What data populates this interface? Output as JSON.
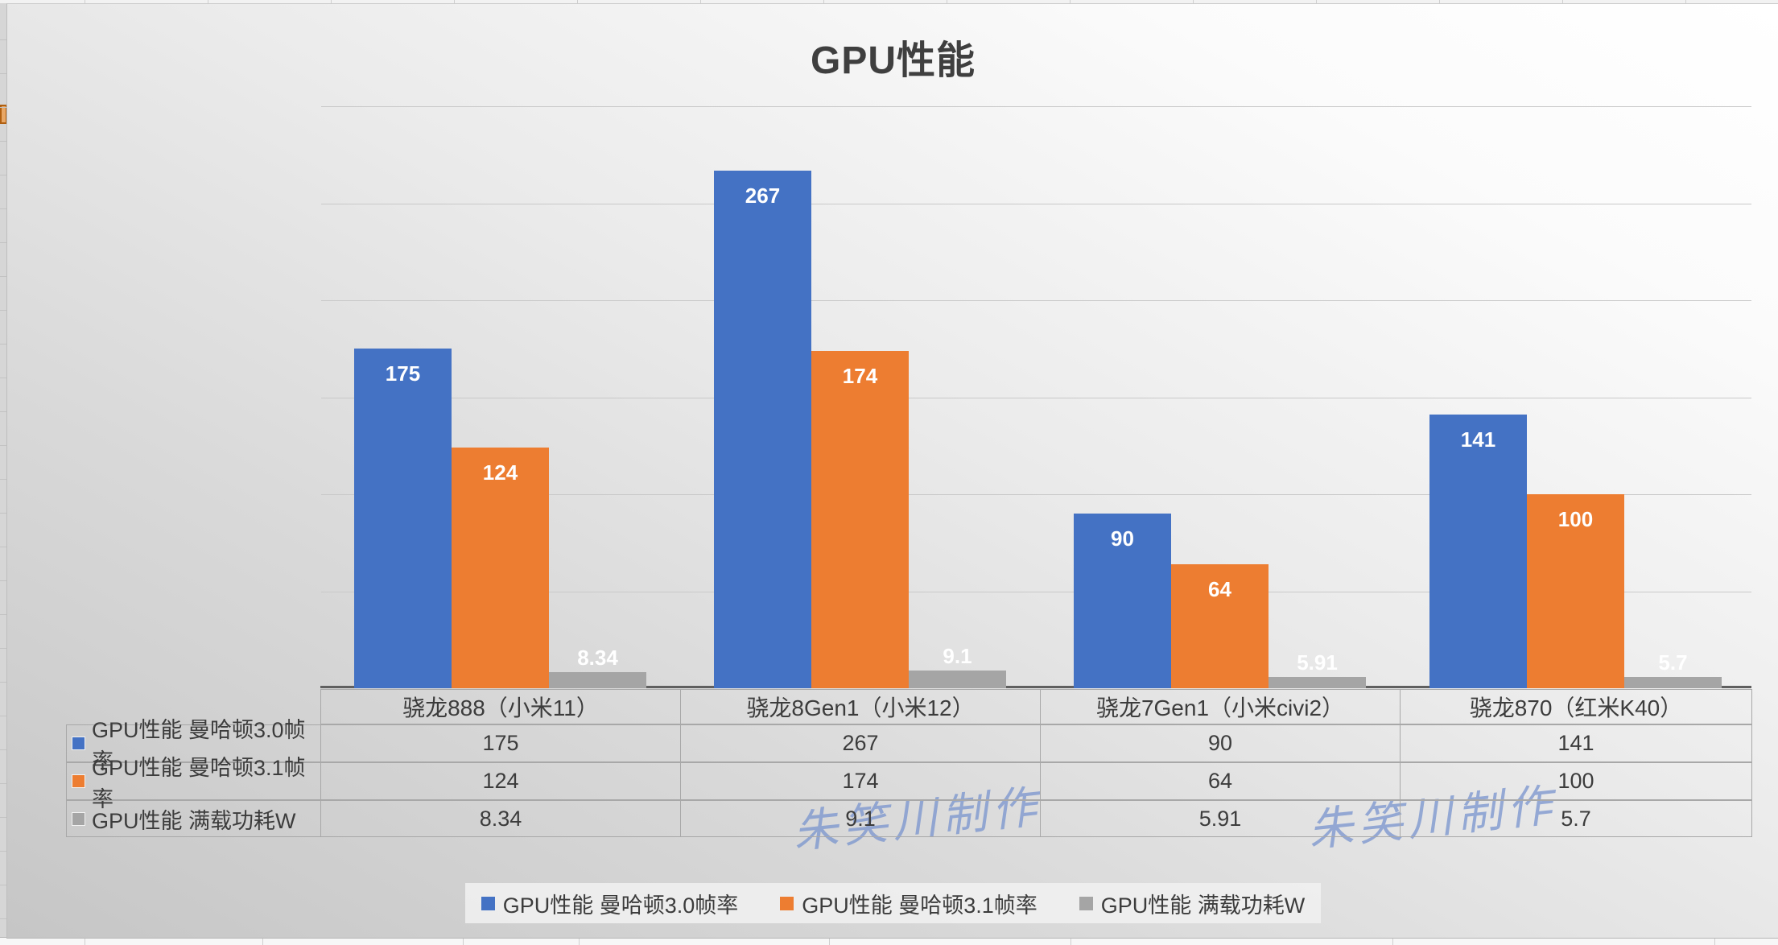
{
  "title": "GPU性能",
  "watermark": {
    "text": "朱笑川制作",
    "color": "#7d97cf"
  },
  "chart_data": {
    "type": "bar",
    "title": "GPU性能",
    "categories": [
      "骁龙888（小米11）",
      "骁龙8Gen1（小米12）",
      "骁龙7Gen1（小米civi2）",
      "骁龙870（红米K40）"
    ],
    "series": [
      {
        "name": "GPU性能 曼哈顿3.0帧率",
        "color": "#4472C4",
        "values": [
          175,
          267,
          90,
          141
        ]
      },
      {
        "name": "GPU性能 曼哈顿3.1帧率",
        "color": "#ED7D31",
        "values": [
          124,
          174,
          64,
          100
        ]
      },
      {
        "name": "GPU性能 满载功耗W",
        "color": "#A5A5A5",
        "values": [
          8.34,
          9.1,
          5.91,
          5.7
        ]
      }
    ],
    "ylim": [
      0,
      300
    ],
    "gridline_interval": 50,
    "grid": true,
    "y_axis_tick_labels_visible": false,
    "legend_position": "bottom",
    "data_table_shown": true,
    "data_label_color": "#ffffff"
  }
}
